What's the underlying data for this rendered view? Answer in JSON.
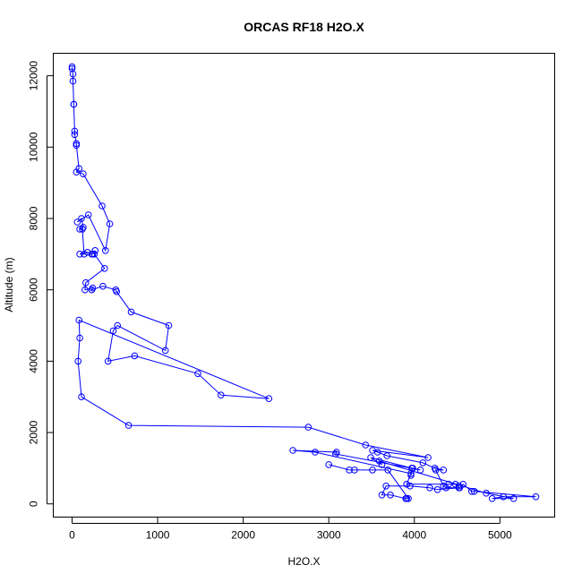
{
  "chart_data": {
    "type": "line",
    "title": "ORCAS RF18 H2O.X",
    "xlabel": "H2O.X",
    "ylabel": "Altitude (m)",
    "xlim": [
      -220,
      5640
    ],
    "ylim": [
      -370,
      12630
    ],
    "xticks": [
      0,
      1000,
      2000,
      3000,
      4000,
      5000
    ],
    "yticks": [
      0,
      2000,
      4000,
      6000,
      8000,
      10000,
      12000
    ],
    "grid": false,
    "legend": "none",
    "color": "#0000ff",
    "markers": "open-circle",
    "series": [
      {
        "points": [
          [
            0,
            12250
          ],
          [
            0,
            12200
          ],
          [
            10,
            12050
          ],
          [
            10,
            11850
          ],
          [
            20,
            11200
          ],
          [
            20,
            11200
          ],
          [
            30,
            10450
          ],
          [
            30,
            10350
          ],
          [
            50,
            10100
          ],
          [
            50,
            10050
          ],
          [
            80,
            9400
          ],
          [
            50,
            9300
          ],
          [
            130,
            9250
          ],
          [
            350,
            8350
          ],
          [
            440,
            7850
          ],
          [
            390,
            7100
          ],
          [
            190,
            8100
          ],
          [
            60,
            7900
          ],
          [
            110,
            8000
          ],
          [
            130,
            7750
          ],
          [
            90,
            7700
          ],
          [
            120,
            7700
          ],
          [
            140,
            7000
          ],
          [
            90,
            7000
          ],
          [
            180,
            7050
          ],
          [
            230,
            7000
          ],
          [
            240,
            7000
          ],
          [
            270,
            7100
          ],
          [
            260,
            7000
          ],
          [
            380,
            6600
          ],
          [
            160,
            6200
          ],
          [
            150,
            6000
          ],
          [
            240,
            6050
          ],
          [
            230,
            6000
          ],
          [
            360,
            6100
          ],
          [
            510,
            6000
          ],
          [
            520,
            5950
          ],
          [
            690,
            5380
          ],
          [
            1130,
            5000
          ],
          [
            1090,
            4300
          ],
          [
            530,
            5000
          ],
          [
            480,
            4850
          ],
          [
            420,
            4000
          ],
          [
            730,
            4150
          ],
          [
            1470,
            3650
          ],
          [
            1740,
            3050
          ],
          [
            2300,
            2950
          ],
          [
            80,
            5150
          ],
          [
            90,
            4650
          ],
          [
            70,
            4000
          ],
          [
            110,
            3000
          ],
          [
            660,
            2200
          ],
          [
            2760,
            2150
          ],
          [
            3430,
            1650
          ],
          [
            4160,
            1300
          ],
          [
            3510,
            1500
          ],
          [
            3570,
            1450
          ],
          [
            3680,
            1350
          ],
          [
            4100,
            1150
          ],
          [
            4240,
            1000
          ],
          [
            4340,
            950
          ],
          [
            4250,
            950
          ],
          [
            4340,
            500
          ],
          [
            4370,
            450
          ],
          [
            4530,
            450
          ],
          [
            4570,
            550
          ],
          [
            4670,
            350
          ],
          [
            4700,
            350
          ],
          [
            5420,
            200
          ],
          [
            5040,
            200
          ],
          [
            4910,
            150
          ],
          [
            5160,
            150
          ],
          [
            4840,
            300
          ],
          [
            3590,
            1200
          ],
          [
            3620,
            1100
          ],
          [
            3490,
            1300
          ],
          [
            3970,
            1000
          ],
          [
            3960,
            800
          ],
          [
            3980,
            1000
          ],
          [
            4070,
            950
          ],
          [
            3080,
            1400
          ],
          [
            3090,
            1450
          ],
          [
            2580,
            1500
          ],
          [
            2840,
            1450
          ],
          [
            3960,
            850
          ],
          [
            3910,
            550
          ],
          [
            4400,
            550
          ],
          [
            4480,
            550
          ],
          [
            4520,
            500
          ],
          [
            4520,
            450
          ],
          [
            4270,
            400
          ],
          [
            4180,
            450
          ],
          [
            3950,
            500
          ],
          [
            3670,
            500
          ],
          [
            3620,
            250
          ],
          [
            3720,
            250
          ],
          [
            3900,
            150
          ],
          [
            3910,
            150
          ],
          [
            3930,
            150
          ],
          [
            3690,
            950
          ],
          [
            3510,
            950
          ],
          [
            3300,
            950
          ],
          [
            3240,
            950
          ],
          [
            3000,
            1100
          ]
        ]
      }
    ]
  }
}
